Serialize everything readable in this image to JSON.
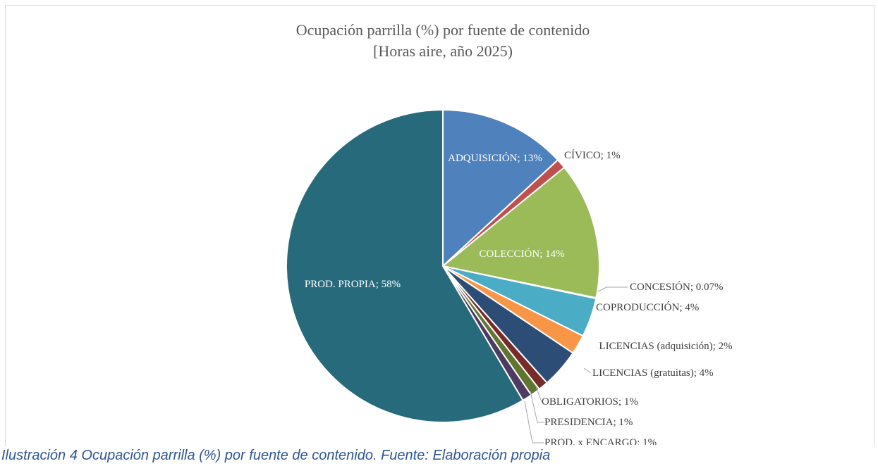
{
  "chart_data": {
    "type": "pie",
    "title": "Ocupación parrilla (%) por fuente de contenido",
    "subtitle": "[Horas aire, año 2025)",
    "values": [
      13,
      1,
      14,
      0.07,
      4,
      2,
      4,
      1,
      1,
      1,
      58
    ],
    "value_labels": [
      "ADQUISICIÓN; 13%",
      "CÍVICO; 1%",
      "COLECCIÓN; 14%",
      "CONCESIÓN; 0.07%",
      "COPRODUCCIÓN; 4%",
      "LICENCIAS (adquisición); 2%",
      "LICENCIAS (gratuitas); 4%",
      "OBLIGATORIOS; 1%",
      "PRESIDENCIA; 1%",
      "PROD. x ENCARGO; 1%",
      "PROD. PROPIA; 58%"
    ],
    "colors": [
      "#4f81bd",
      "#c0504d",
      "#9bbb59",
      "#8064a2",
      "#4bacc6",
      "#f79646",
      "#2c4d75",
      "#772c2a",
      "#5f7530",
      "#4d3b62",
      "#276a7c"
    ]
  },
  "caption": "Ilustración 4 Ocupación parrilla (%) por fuente de contenido. Fuente: Elaboración propia"
}
